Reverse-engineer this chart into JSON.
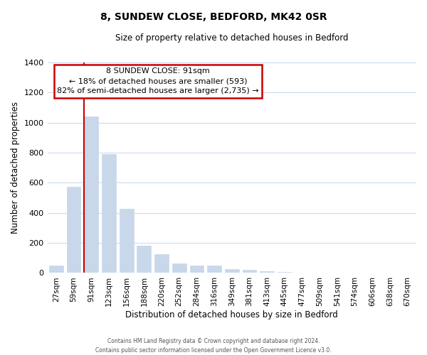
{
  "title": "8, SUNDEW CLOSE, BEDFORD, MK42 0SR",
  "subtitle": "Size of property relative to detached houses in Bedford",
  "xlabel": "Distribution of detached houses by size in Bedford",
  "ylabel": "Number of detached properties",
  "bar_color": "#c8d8ea",
  "marker_color": "#cc0000",
  "categories": [
    "27sqm",
    "59sqm",
    "91sqm",
    "123sqm",
    "156sqm",
    "188sqm",
    "220sqm",
    "252sqm",
    "284sqm",
    "316sqm",
    "349sqm",
    "381sqm",
    "413sqm",
    "445sqm",
    "477sqm",
    "509sqm",
    "541sqm",
    "574sqm",
    "606sqm",
    "638sqm",
    "670sqm"
  ],
  "values": [
    50,
    575,
    1040,
    790,
    425,
    180,
    125,
    65,
    50,
    50,
    25,
    20,
    12,
    5,
    0,
    0,
    0,
    0,
    0,
    0,
    0
  ],
  "marker_bar_index": 2,
  "ylim": [
    0,
    1400
  ],
  "yticks": [
    0,
    200,
    400,
    600,
    800,
    1000,
    1200,
    1400
  ],
  "annotation_title": "8 SUNDEW CLOSE: 91sqm",
  "annotation_line1": "← 18% of detached houses are smaller (593)",
  "annotation_line2": "82% of semi-detached houses are larger (2,735) →",
  "footer1": "Contains HM Land Registry data © Crown copyright and database right 2024.",
  "footer2": "Contains public sector information licensed under the Open Government Licence v3.0.",
  "bg_color": "#ffffff",
  "plot_bg_color": "#ffffff",
  "grid_color": "#c8d8ea"
}
